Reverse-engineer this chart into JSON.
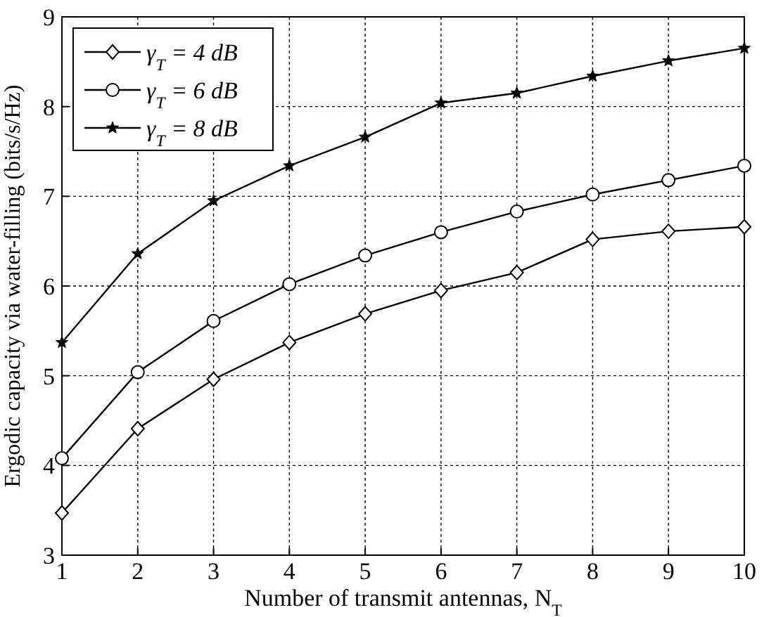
{
  "chart_data": {
    "type": "line",
    "xlabel": "Number of transmit antennas, N$_{T}$",
    "ylabel": "Ergodic capacity via water-filling (bits/s/Hz)",
    "x": [
      1,
      2,
      3,
      4,
      5,
      6,
      7,
      8,
      9,
      10
    ],
    "series": [
      {
        "name": "γ$_{T}$ = 4 dB",
        "color": "#000000",
        "marker": "diamond",
        "values": [
          3.47,
          4.41,
          4.96,
          5.37,
          5.69,
          5.95,
          6.15,
          6.52,
          6.61,
          6.66
        ]
      },
      {
        "name": "γ$_{T}$ = 6 dB",
        "color": "#000000",
        "marker": "circle",
        "values": [
          4.08,
          5.04,
          5.61,
          6.02,
          6.34,
          6.6,
          6.83,
          7.02,
          7.18,
          7.34
        ]
      },
      {
        "name": "γ$_{T}$ = 8 dB",
        "color": "#000000",
        "marker": "star",
        "values": [
          5.37,
          6.36,
          6.95,
          7.34,
          7.66,
          8.04,
          8.15,
          8.34,
          8.51,
          8.65
        ]
      }
    ],
    "xlim": [
      1,
      10
    ],
    "xticks": [
      1,
      2,
      3,
      4,
      5,
      6,
      7,
      8,
      9,
      10
    ],
    "ylim": [
      3,
      9
    ],
    "yticks": [
      3,
      4,
      5,
      6,
      7,
      8,
      9
    ],
    "grid": true,
    "legend": "top left",
    "line_style": "solid"
  }
}
